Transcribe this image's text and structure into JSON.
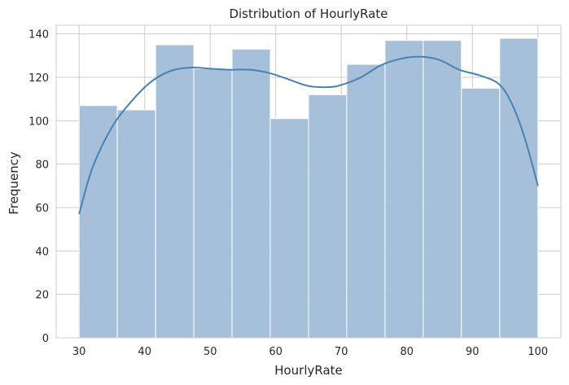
{
  "chart_data": {
    "type": "histogram",
    "title": "Distribution of HourlyRate",
    "xlabel": "HourlyRate",
    "ylabel": "Frequency",
    "xlim": [
      26.5,
      103.5
    ],
    "ylim": [
      0,
      144
    ],
    "xticks": [
      30,
      40,
      50,
      60,
      70,
      80,
      90,
      100
    ],
    "yticks": [
      0,
      20,
      40,
      60,
      80,
      100,
      120,
      140
    ],
    "grid": true,
    "bins": [
      {
        "start": 30.0,
        "end": 35.83,
        "count": 107
      },
      {
        "start": 35.83,
        "end": 41.67,
        "count": 105
      },
      {
        "start": 41.67,
        "end": 47.5,
        "count": 135
      },
      {
        "start": 47.5,
        "end": 53.33,
        "count": 124
      },
      {
        "start": 53.33,
        "end": 59.17,
        "count": 133
      },
      {
        "start": 59.17,
        "end": 65.0,
        "count": 101
      },
      {
        "start": 65.0,
        "end": 70.83,
        "count": 112
      },
      {
        "start": 70.83,
        "end": 76.67,
        "count": 126
      },
      {
        "start": 76.67,
        "end": 82.5,
        "count": 137
      },
      {
        "start": 82.5,
        "end": 88.33,
        "count": 137
      },
      {
        "start": 88.33,
        "end": 94.17,
        "count": 115
      },
      {
        "start": 94.17,
        "end": 100.0,
        "count": 138
      }
    ],
    "kde": {
      "x": [
        30,
        32,
        35,
        38,
        41,
        44,
        47,
        50,
        53,
        56,
        59,
        62,
        65,
        68,
        70,
        73,
        76,
        79,
        82,
        85,
        88,
        91,
        94,
        96,
        98,
        100
      ],
      "y": [
        57,
        78,
        97,
        109,
        118,
        123,
        124.5,
        124,
        123.5,
        123.5,
        122,
        119,
        116,
        115.5,
        116.5,
        120,
        125.5,
        128.5,
        129.5,
        128,
        123.5,
        121,
        117,
        108,
        92,
        70
      ]
    },
    "colors": {
      "bar_fill": "#a2bdd7",
      "bar_edge": "#ffffff",
      "kde_line": "#4682b4",
      "grid": "#cccccc",
      "frame": "#cccccc"
    }
  }
}
